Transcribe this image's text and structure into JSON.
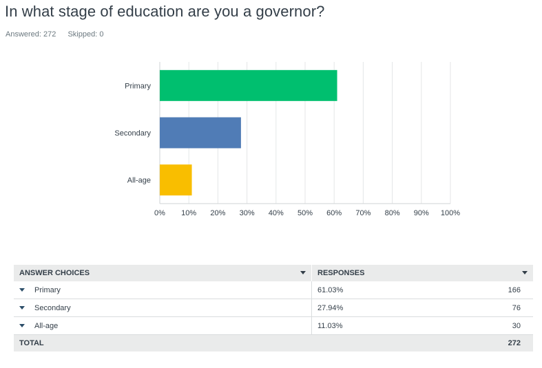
{
  "question": {
    "title": "In what stage of education are you a governor?",
    "answered": "Answered: 272",
    "skipped": "Skipped: 0"
  },
  "chart_data": {
    "type": "bar",
    "orientation": "horizontal",
    "categories": [
      "Primary",
      "Secondary",
      "All-age"
    ],
    "values": [
      61.03,
      27.94,
      11.03
    ],
    "colors": [
      "#00bf6f",
      "#507cb6",
      "#f9be00"
    ],
    "xlim": [
      0,
      100
    ],
    "xticks": [
      "0%",
      "10%",
      "20%",
      "30%",
      "40%",
      "50%",
      "60%",
      "70%",
      "80%",
      "90%",
      "100%"
    ],
    "grid": true
  },
  "table": {
    "headers": [
      "ANSWER CHOICES",
      "RESPONSES"
    ],
    "rows": [
      {
        "choice": "Primary",
        "percent": "61.03%",
        "count": "166"
      },
      {
        "choice": "Secondary",
        "percent": "27.94%",
        "count": "76"
      },
      {
        "choice": "All-age",
        "percent": "11.03%",
        "count": "30"
      }
    ],
    "total_label": "TOTAL",
    "total_count": "272"
  }
}
